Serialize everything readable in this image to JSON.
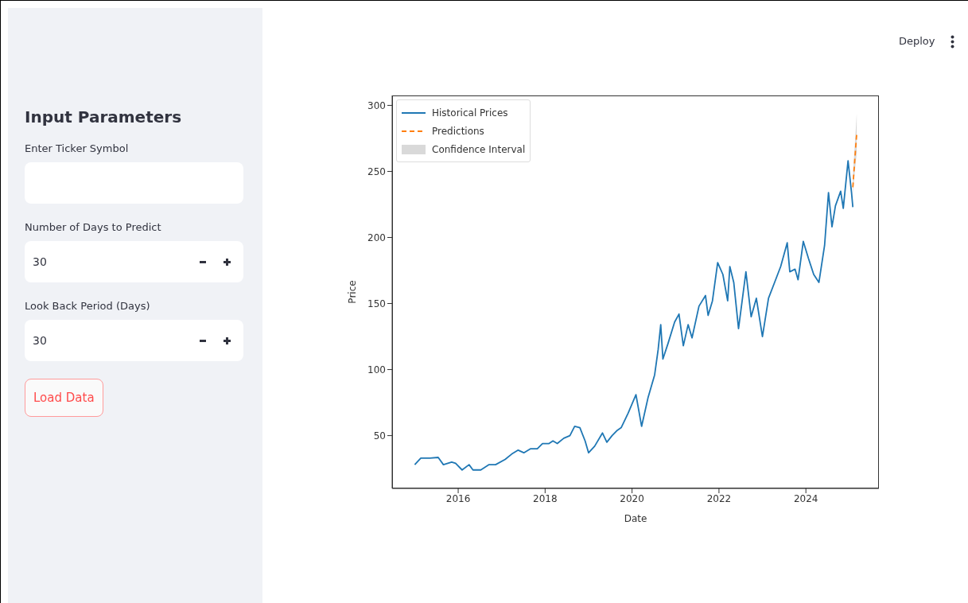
{
  "chart_data": [
    {
      "type": "other",
      "title": "Input Parameters",
      "annotations": [
        "Enter Ticker Symbol",
        "Number of Days to Predict",
        "30",
        "Look Back Period (Days)",
        "30",
        "Load Data",
        "Deploy"
      ]
    },
    {
      "type": "line",
      "xlabel": "Date",
      "ylabel": "Price",
      "xlim": [
        2014.48,
        2025.68
      ],
      "ylim": [
        10,
        307.5
      ],
      "xticks": [
        2016,
        2018,
        2020,
        2022,
        2024
      ],
      "yticks": [
        50,
        100,
        150,
        200,
        250,
        300
      ],
      "legend": "top left",
      "series": [
        {
          "name": "Historical Prices",
          "color": "#1f77b4",
          "x": [
            2015.0,
            2015.14,
            2015.35,
            2015.54,
            2015.66,
            2015.85,
            2015.94,
            2016.09,
            2016.25,
            2016.34,
            2016.52,
            2016.71,
            2016.86,
            2017.08,
            2017.23,
            2017.38,
            2017.51,
            2017.66,
            2017.82,
            2017.94,
            2018.09,
            2018.18,
            2018.28,
            2018.43,
            2018.57,
            2018.68,
            2018.8,
            2018.92,
            2019.0,
            2019.14,
            2019.32,
            2019.42,
            2019.54,
            2019.66,
            2019.75,
            2019.91,
            2020.09,
            2020.22,
            2020.37,
            2020.52,
            2020.6,
            2020.66,
            2020.71,
            2020.83,
            2020.98,
            2021.08,
            2021.18,
            2021.29,
            2021.38,
            2021.54,
            2021.69,
            2021.75,
            2021.85,
            2021.97,
            2022.09,
            2022.2,
            2022.25,
            2022.34,
            2022.45,
            2022.62,
            2022.74,
            2022.86,
            2023.0,
            2023.14,
            2023.28,
            2023.42,
            2023.57,
            2023.63,
            2023.75,
            2023.82,
            2023.94,
            2024.06,
            2024.18,
            2024.3,
            2024.43,
            2024.52,
            2024.6,
            2024.68,
            2024.8,
            2024.86,
            2024.97,
            2025.05,
            2025.08
          ],
          "values": [
            28,
            33,
            33,
            33.5,
            28,
            30,
            29,
            24,
            28,
            24,
            24,
            28,
            28,
            32,
            36,
            39,
            37,
            40,
            40,
            44,
            44,
            46,
            44,
            48,
            50,
            57,
            56,
            46,
            37,
            42,
            52,
            45,
            50,
            54,
            56,
            67,
            81,
            57,
            79,
            96,
            115,
            134,
            108,
            120,
            136,
            142,
            118,
            134,
            124,
            148,
            156,
            141,
            152,
            181,
            172,
            152,
            178,
            166,
            131,
            174,
            140,
            154,
            125,
            154,
            166,
            178,
            196,
            174,
            176,
            168,
            197,
            184,
            172,
            166,
            194,
            234,
            208,
            224,
            235,
            222,
            258,
            234,
            223
          ]
        },
        {
          "name": "Predictions",
          "color": "#ff7f0e",
          "line_style": "dashed",
          "x": [
            2025.08,
            2025.125,
            2025.17
          ],
          "values": [
            238,
            259,
            279
          ],
          "lower": [
            232,
            250,
            264
          ],
          "upper": [
            246,
            270,
            294
          ]
        },
        {
          "name": "Confidence Interval",
          "type": "area",
          "color": "#d9d9d9"
        }
      ]
    }
  ]
}
